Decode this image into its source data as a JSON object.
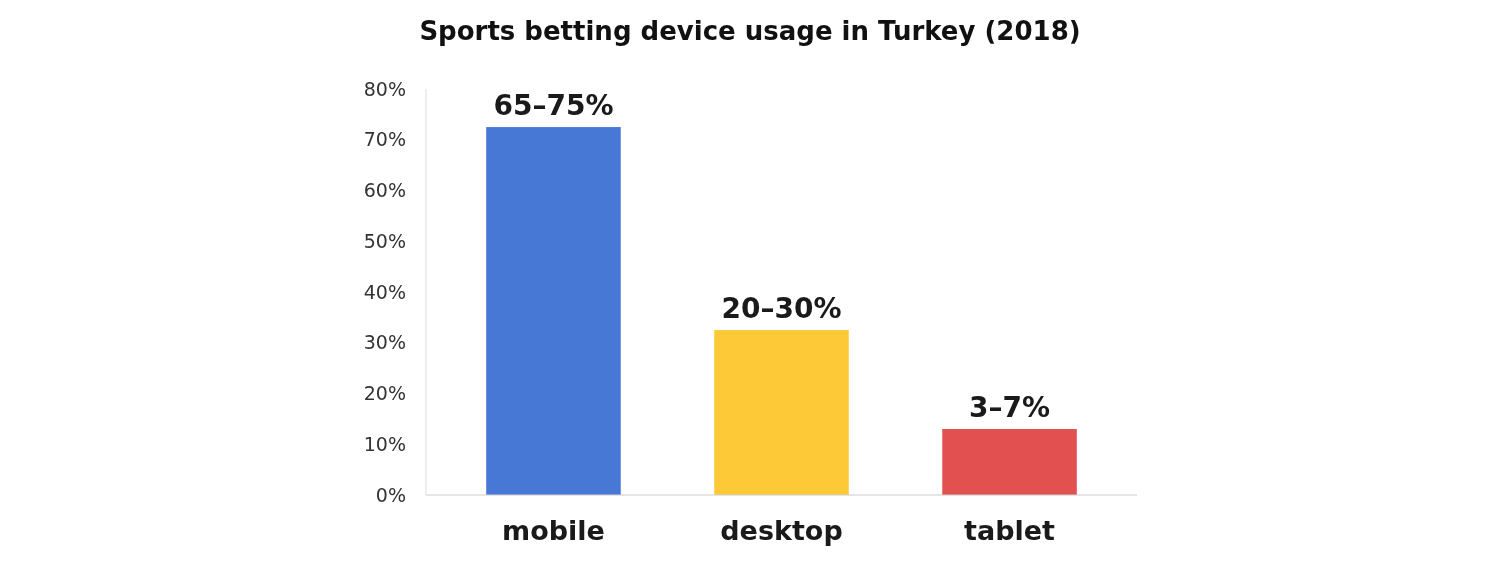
{
  "chart_data": {
    "type": "bar",
    "title": "Sports betting device usage in Turkey (2018)",
    "categories": [
      "mobile",
      "desktop",
      "tablet"
    ],
    "values": [
      72.5,
      32.5,
      13
    ],
    "colors": [
      "#4878d6",
      "#fdc936",
      "#e25050"
    ],
    "annotations": [
      {
        "text": "65–75%",
        "x": "mobile",
        "y": 72.5
      },
      {
        "text": "20–30%",
        "x": "desktop",
        "y": 32.5
      },
      {
        "text": "3–7%",
        "x": "tablet",
        "y": 13
      }
    ],
    "ylim": [
      0,
      80
    ],
    "yticks": [
      {
        "value": 0,
        "label": "0%"
      },
      {
        "value": 10,
        "label": "10%"
      },
      {
        "value": 20,
        "label": "20%"
      },
      {
        "value": 30,
        "label": "30%"
      },
      {
        "value": 40,
        "label": "40%"
      },
      {
        "value": 50,
        "label": "50%"
      },
      {
        "value": 60,
        "label": "60%"
      },
      {
        "value": 70,
        "label": "70%"
      },
      {
        "value": 80,
        "label": "80%"
      }
    ]
  }
}
